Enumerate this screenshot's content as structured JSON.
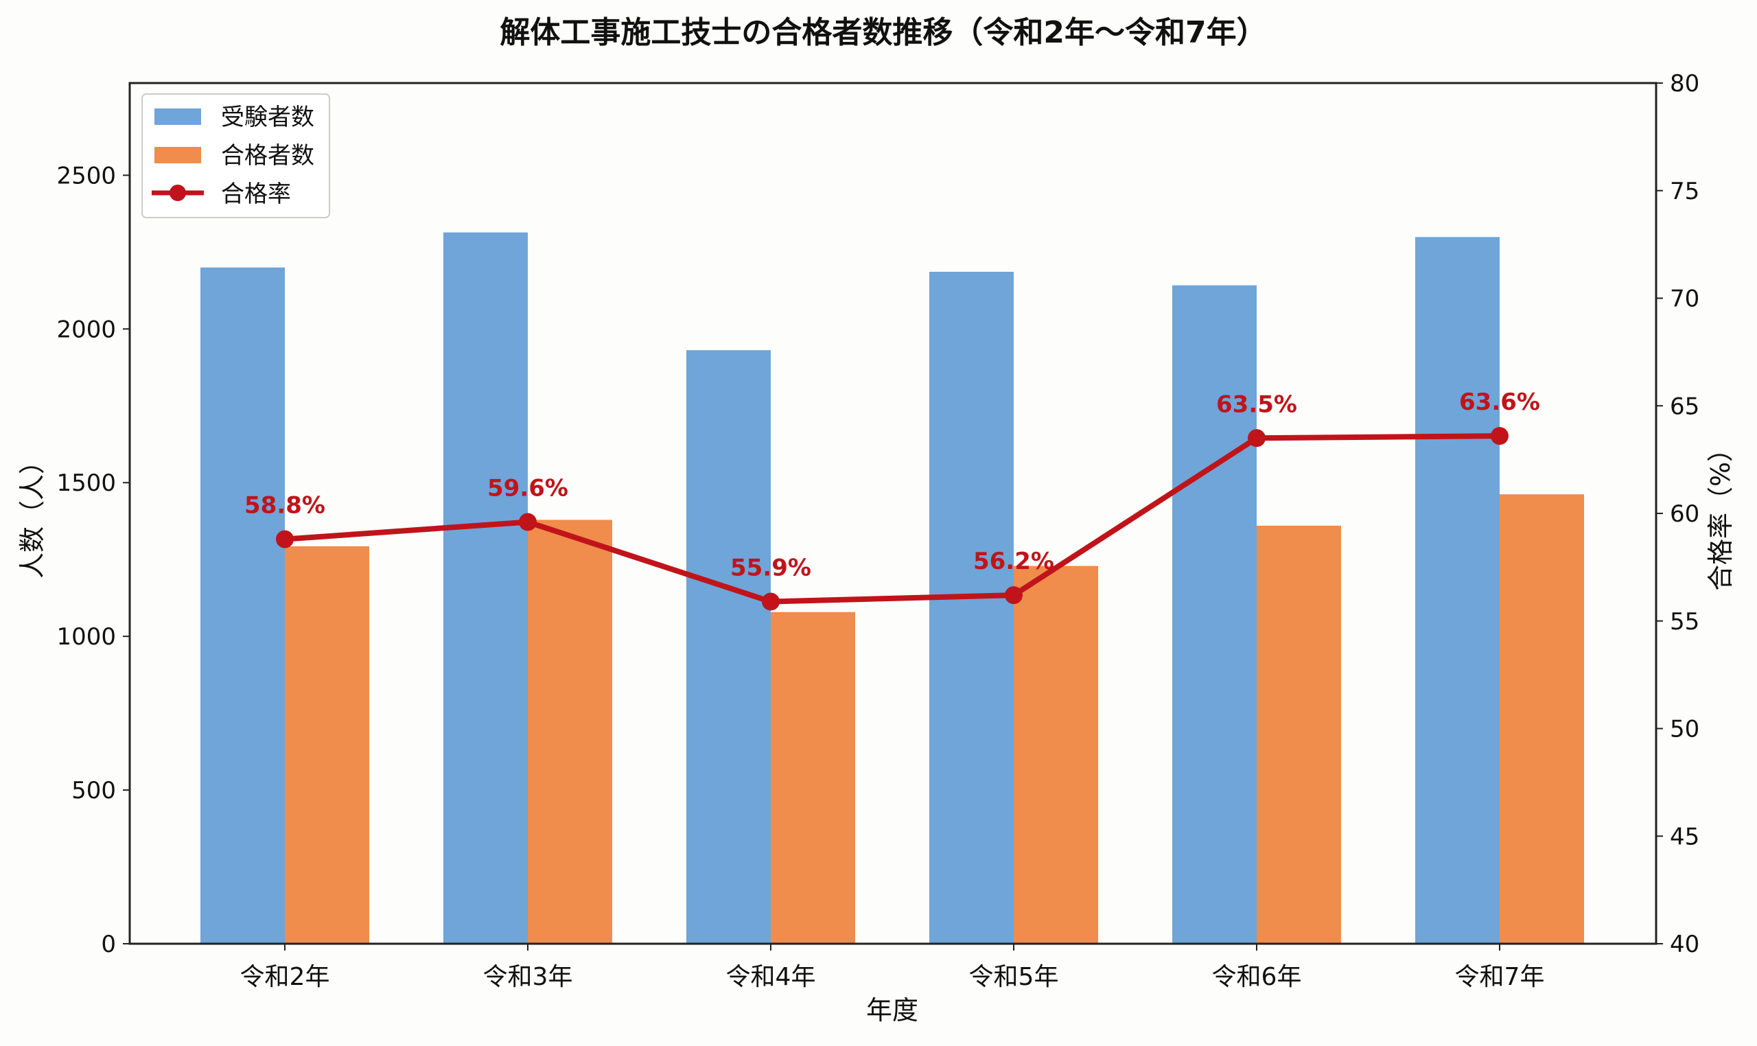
{
  "chart_data": {
    "type": "bar+line",
    "title": "解体工事施工技士の合格者数推移（令和2年〜令和7年）",
    "xlabel": "年度",
    "ylabel": "人数（人）",
    "y2label": "合格率（%）",
    "categories": [
      "令和2年",
      "令和3年",
      "令和4年",
      "令和5年",
      "令和6年",
      "令和7年"
    ],
    "series": [
      {
        "name": "受験者数",
        "type": "bar",
        "axis": "left",
        "color": "#6fa5d8",
        "values": [
          2200,
          2314,
          1931,
          2186,
          2142,
          2299
        ]
      },
      {
        "name": "合格者数",
        "type": "bar",
        "axis": "left",
        "color": "#f08c4c",
        "values": [
          1293,
          1379,
          1079,
          1229,
          1360,
          1462
        ]
      },
      {
        "name": "合格率",
        "type": "line",
        "axis": "right",
        "color": "#c0141a",
        "values": [
          58.8,
          59.6,
          55.9,
          56.2,
          63.5,
          63.6
        ],
        "labels": [
          "58.8%",
          "59.6%",
          "55.9%",
          "56.2%",
          "63.5%",
          "63.6%"
        ]
      }
    ],
    "ylim": [
      0,
      2800
    ],
    "yticks": [
      0,
      500,
      1000,
      1500,
      2000,
      2500
    ],
    "y2lim": [
      40,
      80
    ],
    "y2ticks": [
      40,
      45,
      50,
      55,
      60,
      65,
      70,
      75,
      80
    ],
    "grid": false,
    "legend": "top-left"
  }
}
